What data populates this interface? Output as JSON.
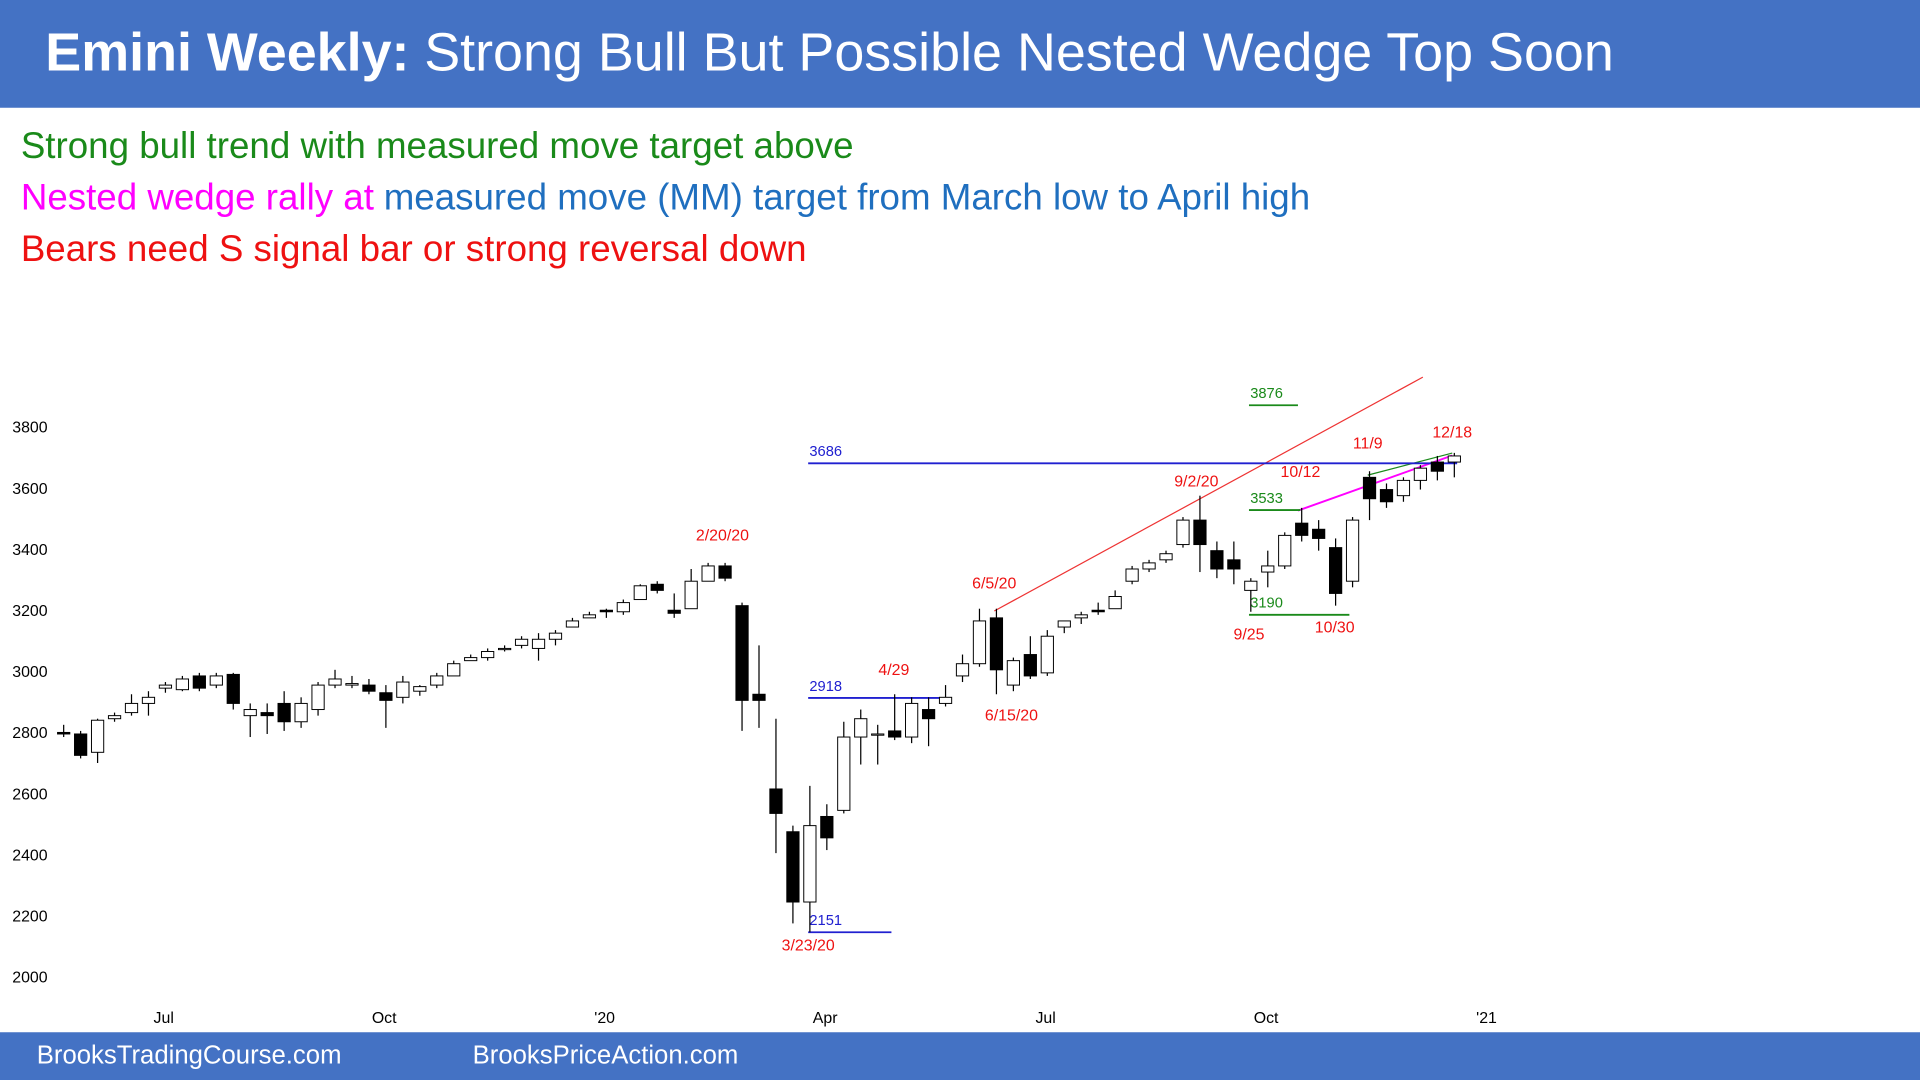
{
  "chart_data": {
    "type": "candlestick",
    "title_bold": "Emini Weekly:",
    "title": "Strong Bull But Possible Nested Wedge Top Soon",
    "header_color": "#4472c4",
    "notes": [
      [
        {
          "text": "Strong bull trend with measured move target above",
          "color": "#1a8a1a"
        }
      ],
      [
        {
          "text": "Nested wedge rally at",
          "color": "#ff00ff"
        },
        {
          "text": "measured move (MM) target from March low to April high",
          "color": "#1f6fbf"
        }
      ],
      [
        {
          "text": "Bears need S signal bar or strong reversal down",
          "color": "#ee1111"
        }
      ]
    ],
    "footer": [
      "BrooksTradingCourse.com",
      "BrooksPriceAction.com"
    ],
    "open": [
      2805,
      2800,
      2740,
      2850,
      2870,
      2900,
      2950,
      2945,
      2990,
      2960,
      2995,
      2860,
      2870,
      2900,
      2840,
      2880,
      2960,
      2960,
      2960,
      2935,
      2920,
      2940,
      2960,
      2990,
      3040,
      3050,
      3080,
      3090,
      3080,
      3110,
      3150,
      3180,
      3205,
      3200,
      3240,
      3290,
      3205,
      3210,
      3300,
      3350,
      3220,
      2930,
      2620,
      2480,
      2250,
      2530,
      2550,
      2790,
      2800,
      2810,
      2790,
      2880,
      2900,
      2990,
      3030,
      3180,
      2960,
      3060,
      3000,
      3150,
      3180,
      3205,
      3210,
      3300,
      3340,
      3370,
      3420,
      3500,
      3400,
      3370,
      3270,
      3330,
      3350,
      3490,
      3470,
      3410,
      3300,
      3640,
      3600,
      3580,
      3630,
      3690,
      3690
    ],
    "high": [
      2830,
      2810,
      2850,
      2870,
      2930,
      2940,
      2970,
      2990,
      3000,
      3000,
      3000,
      2900,
      2900,
      2940,
      2920,
      2970,
      3010,
      2990,
      2980,
      2960,
      2990,
      2960,
      3000,
      3040,
      3060,
      3080,
      3090,
      3120,
      3130,
      3140,
      3180,
      3200,
      3210,
      3240,
      3290,
      3300,
      3260,
      3340,
      3360,
      3360,
      3230,
      3090,
      2850,
      2500,
      2630,
      2570,
      2840,
      2880,
      2830,
      2930,
      2920,
      2920,
      2960,
      3060,
      3210,
      3210,
      3050,
      3120,
      3140,
      3170,
      3200,
      3230,
      3270,
      3350,
      3370,
      3400,
      3510,
      3580,
      3430,
      3430,
      3310,
      3400,
      3460,
      3540,
      3500,
      3440,
      3510,
      3660,
      3620,
      3640,
      3680,
      3710,
      3720
    ],
    "low": [
      2790,
      2720,
      2705,
      2840,
      2860,
      2860,
      2935,
      2940,
      2940,
      2950,
      2880,
      2790,
      2800,
      2810,
      2820,
      2860,
      2950,
      2950,
      2930,
      2820,
      2900,
      2925,
      2950,
      2990,
      3040,
      3040,
      3070,
      3080,
      3040,
      3090,
      3150,
      3180,
      3180,
      3190,
      3240,
      3260,
      3180,
      3210,
      3300,
      3300,
      2810,
      2820,
      2410,
      2180,
      2151,
      2420,
      2540,
      2700,
      2700,
      2780,
      2770,
      2760,
      2890,
      2970,
      3020,
      2930,
      2940,
      2980,
      2990,
      3130,
      3160,
      3190,
      3210,
      3290,
      3330,
      3360,
      3410,
      3330,
      3310,
      3290,
      3200,
      3280,
      3340,
      3430,
      3400,
      3220,
      3280,
      3500,
      3540,
      3560,
      3600,
      3630,
      3640
    ],
    "close": [
      2800,
      2730,
      2845,
      2860,
      2900,
      2920,
      2960,
      2980,
      2950,
      2990,
      2900,
      2880,
      2860,
      2840,
      2900,
      2960,
      2980,
      2965,
      2940,
      2910,
      2970,
      2955,
      2990,
      3030,
      3050,
      3070,
      3080,
      3110,
      3110,
      3130,
      3170,
      3190,
      3200,
      3230,
      3285,
      3270,
      3195,
      3300,
      3350,
      3310,
      2910,
      2910,
      2540,
      2250,
      2500,
      2460,
      2790,
      2850,
      2800,
      2790,
      2900,
      2850,
      2920,
      3030,
      3170,
      3010,
      3040,
      2990,
      3120,
      3170,
      3190,
      3200,
      3250,
      3340,
      3360,
      3390,
      3500,
      3420,
      3340,
      3340,
      3300,
      3350,
      3450,
      3450,
      3440,
      3260,
      3500,
      3570,
      3560,
      3630,
      3670,
      3660,
      3710
    ],
    "up_color": "#ffffff",
    "down_color": "#000000",
    "ylim": [
      1950,
      4000
    ],
    "yticks": [
      2000,
      2200,
      2400,
      2600,
      2800,
      3000,
      3200,
      3400,
      3600,
      3800
    ],
    "xlim": [
      -1,
      109
    ],
    "xticks": [
      {
        "value": 5.9,
        "label": "Jul"
      },
      {
        "value": 18.9,
        "label": "Oct"
      },
      {
        "value": 31.9,
        "label": "'20"
      },
      {
        "value": 44.9,
        "label": "Apr"
      },
      {
        "value": 57.9,
        "label": "Jul"
      },
      {
        "value": 70.9,
        "label": "Oct"
      },
      {
        "value": 83.9,
        "label": "'21"
      }
    ],
    "levels": [
      {
        "value": 3686,
        "color": "#2020d0"
      },
      {
        "value": 2918,
        "color": "#2020d0"
      },
      {
        "value": 2151,
        "color": "#2020d0"
      },
      {
        "value": 3876,
        "color": "#1a8a1a"
      },
      {
        "value": 3533,
        "color": "#1a8a1a"
      },
      {
        "value": 3190,
        "color": "#1a8a1a"
      }
    ],
    "date_labels": [
      "2/20/20",
      "3/23/20",
      "4/29",
      "6/5/20",
      "6/15/20",
      "9/2/20",
      "9/25",
      "10/12",
      "10/30",
      "11/9",
      "12/18"
    ],
    "date_label_color": "#ee1111"
  }
}
